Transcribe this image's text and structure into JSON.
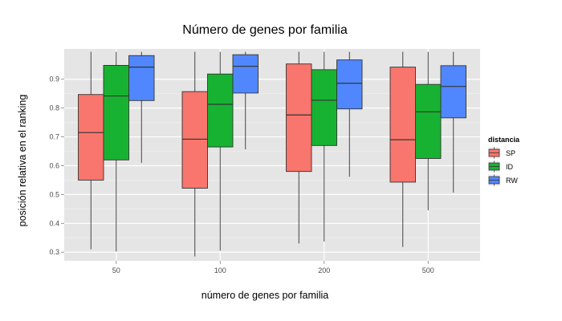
{
  "chart_data": {
    "type": "boxplot",
    "title": "Número de genes por familia",
    "xlabel": "número de genes por familia",
    "ylabel": "posición relativa en el ranking",
    "categories": [
      "50",
      "100",
      "200",
      "500"
    ],
    "ylim": [
      0.27,
      1.005
    ],
    "yticks": [
      0.3,
      0.4,
      0.5,
      0.6,
      0.7,
      0.8,
      0.9
    ],
    "grid": true,
    "legend": {
      "title": "distancia",
      "position": "right"
    },
    "series": [
      {
        "name": "SP",
        "color": "#f8766d",
        "boxes": [
          {
            "min": 0.31,
            "q1": 0.55,
            "median": 0.715,
            "q3": 0.847,
            "max": 0.995
          },
          {
            "min": 0.285,
            "q1": 0.522,
            "median": 0.692,
            "q3": 0.857,
            "max": 0.995
          },
          {
            "min": 0.33,
            "q1": 0.58,
            "median": 0.776,
            "q3": 0.953,
            "max": 0.995
          },
          {
            "min": 0.318,
            "q1": 0.543,
            "median": 0.69,
            "q3": 0.942,
            "max": 0.995
          }
        ]
      },
      {
        "name": "ID",
        "color": "#18b232",
        "boxes": [
          {
            "min": 0.302,
            "q1": 0.62,
            "median": 0.842,
            "q3": 0.948,
            "max": 0.995
          },
          {
            "min": 0.305,
            "q1": 0.665,
            "median": 0.813,
            "q3": 0.918,
            "max": 0.995
          },
          {
            "min": 0.337,
            "q1": 0.67,
            "median": 0.827,
            "q3": 0.933,
            "max": 0.995
          },
          {
            "min": 0.445,
            "q1": 0.625,
            "median": 0.787,
            "q3": 0.882,
            "max": 0.995
          }
        ]
      },
      {
        "name": "RW",
        "color": "#5087ff",
        "boxes": [
          {
            "min": 0.61,
            "q1": 0.826,
            "median": 0.942,
            "q3": 0.982,
            "max": 0.995
          },
          {
            "min": 0.657,
            "q1": 0.852,
            "median": 0.945,
            "q3": 0.985,
            "max": 0.995
          },
          {
            "min": 0.562,
            "q1": 0.797,
            "median": 0.886,
            "q3": 0.967,
            "max": 0.995
          },
          {
            "min": 0.507,
            "q1": 0.766,
            "median": 0.875,
            "q3": 0.947,
            "max": 0.995
          }
        ]
      }
    ]
  }
}
